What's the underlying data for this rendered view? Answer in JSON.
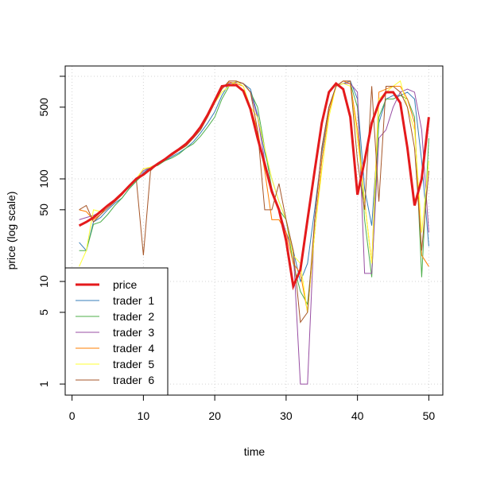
{
  "chart_data": {
    "type": "line",
    "xlabel": "time",
    "ylabel": "price (log scale)",
    "log_y": true,
    "grid": true,
    "legend_position": "bottom-left",
    "xlim": [
      -0.96,
      51.96
    ],
    "ylim": [
      0.78,
      1260
    ],
    "xticks": [
      0,
      10,
      20,
      30,
      40,
      50
    ],
    "yticks": [
      1,
      5,
      10,
      50,
      100,
      500
    ],
    "ygrid": [
      1,
      10,
      100,
      1000
    ],
    "x": [
      1,
      2,
      3,
      4,
      5,
      6,
      7,
      8,
      9,
      10,
      11,
      12,
      13,
      14,
      15,
      16,
      17,
      18,
      19,
      20,
      21,
      22,
      23,
      24,
      25,
      26,
      27,
      28,
      29,
      30,
      31,
      32,
      33,
      34,
      35,
      36,
      37,
      38,
      39,
      40,
      41,
      42,
      43,
      44,
      45,
      46,
      47,
      48,
      49,
      50
    ],
    "series": [
      {
        "name": "price",
        "color": "#e41a1c",
        "width": 3,
        "values": [
          35,
          38,
          42,
          48,
          55,
          62,
          72,
          85,
          100,
          110,
          125,
          140,
          155,
          175,
          195,
          220,
          260,
          320,
          420,
          580,
          800,
          820,
          820,
          720,
          480,
          250,
          140,
          75,
          50,
          25,
          9,
          13,
          40,
          120,
          350,
          700,
          850,
          750,
          400,
          70,
          150,
          350,
          550,
          700,
          700,
          550,
          200,
          55,
          100,
          400
        ]
      },
      {
        "name": "trader  1",
        "color": "#377eb8",
        "width": 1,
        "values": [
          24,
          20,
          38,
          42,
          50,
          58,
          65,
          80,
          95,
          115,
          130,
          140,
          150,
          165,
          180,
          200,
          230,
          280,
          350,
          450,
          650,
          850,
          880,
          850,
          750,
          420,
          180,
          100,
          60,
          40,
          20,
          10,
          15,
          50,
          180,
          500,
          800,
          850,
          900,
          600,
          80,
          35,
          350,
          600,
          650,
          650,
          700,
          600,
          150,
          22
        ]
      },
      {
        "name": "trader  2",
        "color": "#4daf4a",
        "width": 1,
        "values": [
          20,
          20,
          36,
          38,
          45,
          55,
          65,
          80,
          95,
          110,
          130,
          135,
          150,
          160,
          175,
          200,
          220,
          260,
          320,
          400,
          600,
          800,
          880,
          850,
          700,
          500,
          200,
          80,
          50,
          40,
          15,
          8,
          6,
          30,
          150,
          450,
          800,
          850,
          850,
          500,
          40,
          11,
          400,
          600,
          600,
          650,
          600,
          400,
          11,
          250
        ]
      },
      {
        "name": "trader  3",
        "color": "#984ea3",
        "width": 1,
        "values": [
          40,
          42,
          44,
          48,
          55,
          62,
          70,
          85,
          100,
          120,
          130,
          140,
          155,
          170,
          190,
          220,
          260,
          320,
          420,
          580,
          800,
          850,
          880,
          850,
          700,
          400,
          150,
          80,
          50,
          30,
          20,
          1,
          1,
          40,
          200,
          500,
          800,
          850,
          850,
          700,
          12,
          12,
          250,
          300,
          500,
          700,
          750,
          700,
          300,
          30
        ]
      },
      {
        "name": "trader  4",
        "color": "#ff7f00",
        "width": 1,
        "values": [
          50,
          48,
          40,
          45,
          55,
          60,
          70,
          85,
          100,
          125,
          130,
          140,
          155,
          170,
          190,
          210,
          250,
          300,
          400,
          550,
          750,
          880,
          850,
          800,
          500,
          300,
          120,
          40,
          40,
          30,
          15,
          12,
          5,
          30,
          150,
          450,
          800,
          900,
          850,
          300,
          60,
          15,
          700,
          750,
          800,
          800,
          600,
          350,
          18,
          14
        ]
      },
      {
        "name": "trader  5",
        "color": "#ffff33",
        "width": 1,
        "values": [
          14,
          20,
          50,
          48,
          55,
          62,
          72,
          85,
          100,
          125,
          130,
          140,
          155,
          175,
          195,
          220,
          250,
          320,
          420,
          550,
          700,
          800,
          900,
          800,
          500,
          400,
          200,
          100,
          60,
          40,
          18,
          15,
          5,
          30,
          120,
          400,
          800,
          850,
          800,
          250,
          60,
          15,
          600,
          700,
          800,
          900,
          500,
          300,
          30,
          150
        ]
      },
      {
        "name": "trader  6",
        "color": "#a65628",
        "width": 1,
        "values": [
          50,
          55,
          38,
          45,
          52,
          60,
          70,
          85,
          100,
          18,
          120,
          140,
          155,
          170,
          190,
          210,
          250,
          300,
          400,
          550,
          750,
          900,
          900,
          850,
          700,
          300,
          50,
          50,
          90,
          40,
          20,
          4,
          5,
          40,
          200,
          500,
          800,
          900,
          900,
          150,
          50,
          800,
          60,
          800,
          800,
          700,
          500,
          200,
          20,
          120
        ]
      }
    ]
  }
}
